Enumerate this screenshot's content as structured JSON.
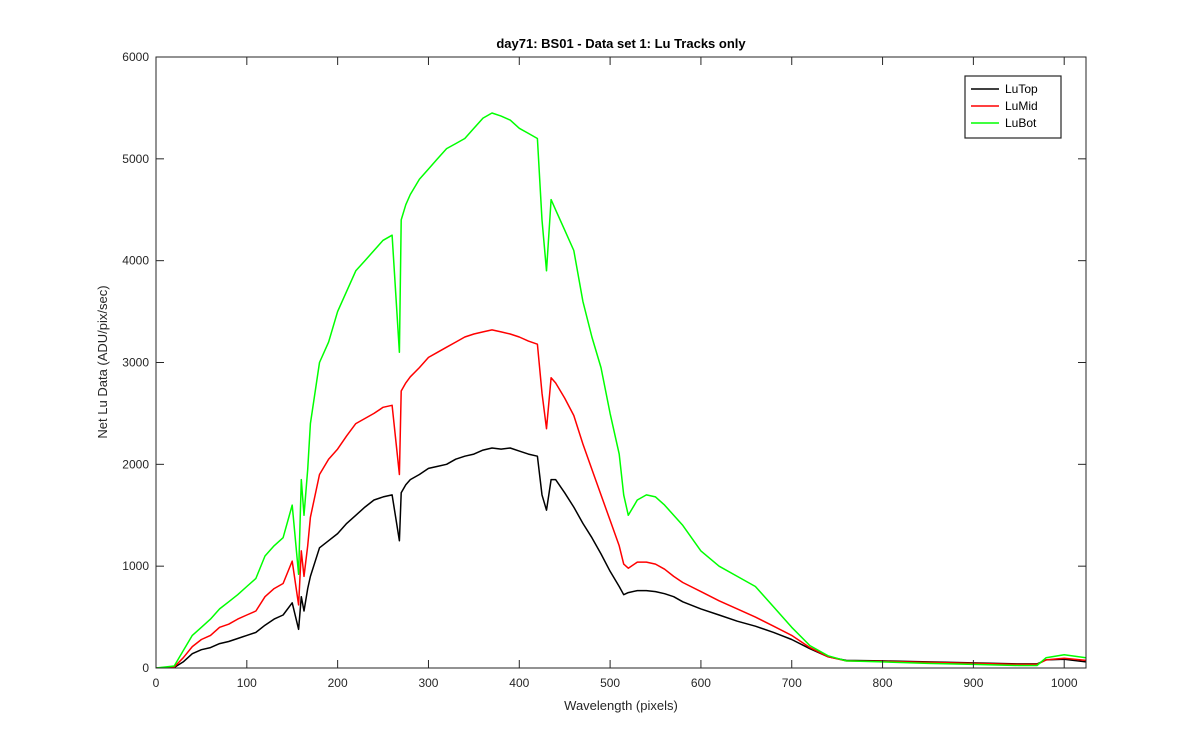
{
  "chart_data": {
    "type": "line",
    "title": "day71: BS01 - Data set 1: Lu Tracks only",
    "xlabel": "Wavelength (pixels)",
    "ylabel": "Net Lu Data (ADU/pix/sec)",
    "xlim": [
      0,
      1024
    ],
    "ylim": [
      0,
      6000
    ],
    "xticks": [
      0,
      100,
      200,
      300,
      400,
      500,
      600,
      700,
      800,
      900,
      1000
    ],
    "yticks": [
      0,
      1000,
      2000,
      3000,
      4000,
      5000,
      6000
    ],
    "grid": false,
    "legend_position": "top-right",
    "series": [
      {
        "name": "LuTop",
        "color": "#000000",
        "x": [
          0,
          20,
          30,
          40,
          50,
          60,
          70,
          80,
          90,
          100,
          110,
          120,
          130,
          140,
          150,
          157,
          160,
          163,
          167,
          170,
          180,
          190,
          200,
          210,
          220,
          230,
          240,
          250,
          260,
          268,
          270,
          275,
          280,
          290,
          300,
          310,
          320,
          330,
          340,
          350,
          360,
          370,
          380,
          390,
          400,
          410,
          420,
          425,
          430,
          435,
          440,
          450,
          460,
          470,
          480,
          490,
          500,
          510,
          515,
          520,
          530,
          540,
          550,
          560,
          570,
          580,
          600,
          620,
          640,
          660,
          680,
          700,
          720,
          740,
          760,
          800,
          850,
          900,
          950,
          970,
          980,
          1000,
          1024
        ],
        "y": [
          0,
          5,
          60,
          140,
          180,
          200,
          240,
          260,
          290,
          320,
          350,
          420,
          480,
          520,
          640,
          380,
          700,
          560,
          780,
          900,
          1180,
          1250,
          1320,
          1420,
          1500,
          1580,
          1650,
          1680,
          1700,
          1250,
          1720,
          1800,
          1850,
          1900,
          1960,
          1980,
          2000,
          2050,
          2080,
          2100,
          2140,
          2160,
          2150,
          2160,
          2130,
          2100,
          2080,
          1700,
          1550,
          1850,
          1850,
          1720,
          1580,
          1420,
          1280,
          1120,
          950,
          800,
          720,
          740,
          760,
          760,
          750,
          730,
          700,
          650,
          580,
          520,
          460,
          410,
          350,
          280,
          190,
          110,
          75,
          70,
          60,
          50,
          40,
          40,
          80,
          85,
          60
        ]
      },
      {
        "name": "LuMid",
        "color": "#ff0000",
        "x": [
          0,
          20,
          30,
          40,
          50,
          60,
          70,
          80,
          90,
          100,
          110,
          120,
          130,
          140,
          150,
          157,
          160,
          163,
          167,
          170,
          180,
          190,
          200,
          210,
          220,
          230,
          240,
          250,
          260,
          268,
          270,
          275,
          280,
          290,
          300,
          310,
          320,
          330,
          340,
          350,
          360,
          370,
          380,
          390,
          400,
          410,
          420,
          425,
          430,
          435,
          440,
          450,
          460,
          470,
          480,
          490,
          500,
          510,
          515,
          520,
          530,
          540,
          550,
          560,
          570,
          580,
          600,
          620,
          640,
          660,
          680,
          700,
          720,
          740,
          760,
          800,
          850,
          900,
          950,
          970,
          980,
          1000,
          1024
        ],
        "y": [
          0,
          10,
          100,
          210,
          280,
          320,
          400,
          430,
          480,
          520,
          560,
          700,
          780,
          830,
          1050,
          620,
          1150,
          900,
          1200,
          1480,
          1900,
          2050,
          2150,
          2280,
          2400,
          2450,
          2500,
          2560,
          2580,
          1900,
          2720,
          2800,
          2860,
          2950,
          3050,
          3100,
          3150,
          3200,
          3250,
          3280,
          3300,
          3320,
          3300,
          3280,
          3250,
          3210,
          3180,
          2700,
          2350,
          2850,
          2800,
          2650,
          2480,
          2200,
          1950,
          1700,
          1450,
          1200,
          1020,
          980,
          1040,
          1040,
          1020,
          970,
          900,
          840,
          750,
          660,
          580,
          500,
          410,
          320,
          200,
          110,
          70,
          65,
          55,
          45,
          35,
          35,
          80,
          95,
          75
        ]
      },
      {
        "name": "LuBot",
        "color": "#00ff00",
        "x": [
          0,
          20,
          30,
          40,
          50,
          60,
          70,
          80,
          90,
          100,
          110,
          120,
          130,
          140,
          150,
          157,
          160,
          163,
          167,
          170,
          180,
          190,
          200,
          210,
          220,
          230,
          240,
          250,
          260,
          268,
          270,
          275,
          280,
          290,
          300,
          310,
          320,
          330,
          340,
          350,
          360,
          370,
          380,
          390,
          400,
          410,
          420,
          425,
          430,
          435,
          440,
          450,
          460,
          470,
          480,
          490,
          500,
          510,
          515,
          520,
          530,
          540,
          550,
          560,
          570,
          580,
          600,
          620,
          640,
          660,
          680,
          700,
          720,
          740,
          760,
          800,
          850,
          900,
          950,
          970,
          980,
          1000,
          1024
        ],
        "y": [
          0,
          20,
          170,
          320,
          400,
          480,
          580,
          650,
          720,
          800,
          880,
          1100,
          1200,
          1280,
          1600,
          920,
          1850,
          1500,
          1950,
          2400,
          3000,
          3200,
          3500,
          3700,
          3900,
          4000,
          4100,
          4200,
          4250,
          3100,
          4400,
          4550,
          4650,
          4800,
          4900,
          5000,
          5100,
          5150,
          5200,
          5300,
          5400,
          5450,
          5420,
          5380,
          5300,
          5250,
          5200,
          4400,
          3900,
          4600,
          4500,
          4300,
          4100,
          3600,
          3250,
          2950,
          2500,
          2100,
          1700,
          1500,
          1650,
          1700,
          1680,
          1600,
          1500,
          1400,
          1150,
          1000,
          900,
          800,
          600,
          400,
          220,
          120,
          70,
          60,
          45,
          35,
          25,
          25,
          100,
          130,
          100
        ]
      }
    ]
  }
}
